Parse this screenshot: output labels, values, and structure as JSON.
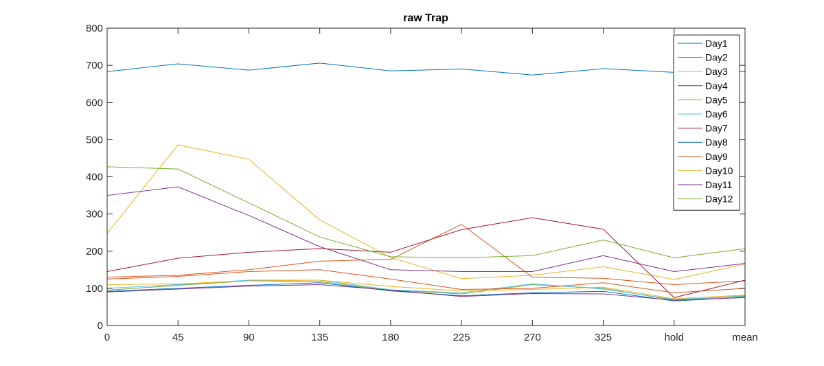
{
  "chart_data": {
    "type": "line",
    "title": "raw Trap",
    "xlabel": "",
    "ylabel": "",
    "categories": [
      "0",
      "45",
      "90",
      "135",
      "180",
      "225",
      "270",
      "325",
      "hold",
      "mean"
    ],
    "ylim": [
      0,
      800
    ],
    "yticks": [
      0,
      100,
      200,
      300,
      400,
      500,
      600,
      700,
      800
    ],
    "grid": false,
    "legend_position": "top-right",
    "series": [
      {
        "name": "Day1",
        "color": "#0072BD",
        "values": [
          683,
          704,
          687,
          706,
          685,
          690,
          674,
          691,
          681,
          683
        ]
      },
      {
        "name": "Day2",
        "color": "#D95319",
        "values": [
          130,
          135,
          150,
          173,
          178,
          272,
          130,
          127,
          110,
          120
        ]
      },
      {
        "name": "Day3",
        "color": "#EDB120",
        "values": [
          248,
          486,
          447,
          284,
          183,
          126,
          135,
          158,
          124,
          165
        ]
      },
      {
        "name": "Day4",
        "color": "#7E2F8E",
        "values": [
          350,
          373,
          296,
          212,
          150,
          145,
          145,
          188,
          145,
          167
        ]
      },
      {
        "name": "Day5",
        "color": "#77AC30",
        "values": [
          95,
          108,
          120,
          118,
          95,
          85,
          110,
          100,
          68,
          80
        ]
      },
      {
        "name": "Day6",
        "color": "#4DBEEE",
        "values": [
          100,
          110,
          122,
          122,
          96,
          88,
          112,
          98,
          70,
          78
        ]
      },
      {
        "name": "Day7",
        "color": "#A2142F",
        "values": [
          145,
          181,
          197,
          207,
          197,
          258,
          290,
          259,
          75,
          122
        ]
      },
      {
        "name": "Day8",
        "color": "#0072BD",
        "values": [
          92,
          100,
          108,
          115,
          93,
          80,
          88,
          92,
          66,
          76
        ]
      },
      {
        "name": "Day9",
        "color": "#D95319",
        "values": [
          125,
          132,
          145,
          150,
          125,
          97,
          100,
          115,
          88,
          100
        ]
      },
      {
        "name": "Day10",
        "color": "#EDB120",
        "values": [
          110,
          112,
          120,
          122,
          105,
          93,
          97,
          103,
          72,
          82
        ]
      },
      {
        "name": "Day11",
        "color": "#7E2F8E",
        "values": [
          90,
          98,
          106,
          110,
          95,
          78,
          86,
          85,
          68,
          75
        ]
      },
      {
        "name": "Day12",
        "color": "#77AC30",
        "values": [
          427,
          421,
          330,
          238,
          185,
          182,
          188,
          230,
          182,
          207
        ]
      }
    ]
  }
}
